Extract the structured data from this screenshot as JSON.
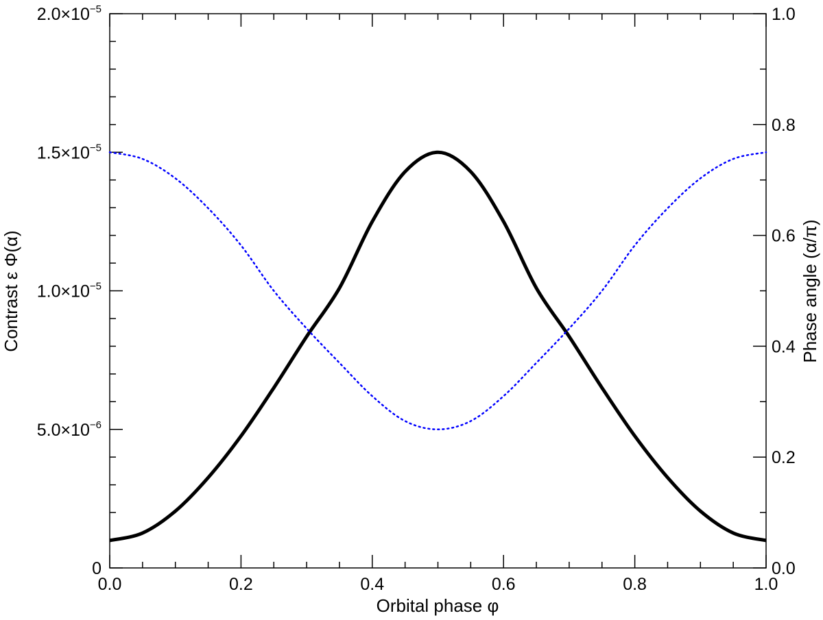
{
  "chart_data": {
    "type": "line",
    "xlabel": "Orbital phase φ",
    "ylabel": "Contrast ε Φ(α)",
    "y2label": "Phase angle (α/π)",
    "xlim": [
      0.0,
      1.0
    ],
    "ylim": [
      0,
      2e-05
    ],
    "y2lim": [
      0.0,
      1.0
    ],
    "grid": false,
    "legend": "none",
    "x_ticks": [
      "0.0",
      "0.2",
      "0.4",
      "0.6",
      "0.8",
      "1.0"
    ],
    "y_ticks": [
      {
        "value": 0,
        "mant": "0",
        "exp": ""
      },
      {
        "value": 5e-06,
        "mant": "5.0×10",
        "exp": "−6"
      },
      {
        "value": 1e-05,
        "mant": "1.0×10",
        "exp": "−5"
      },
      {
        "value": 1.5e-05,
        "mant": "1.5×10",
        "exp": "−5"
      },
      {
        "value": 2e-05,
        "mant": "2.0×10",
        "exp": "−5"
      }
    ],
    "y2_ticks": [
      "0.0",
      "0.2",
      "0.4",
      "0.6",
      "0.8",
      "1.0"
    ],
    "series": [
      {
        "axis": "left",
        "color": "#000000",
        "style": "solid",
        "x": [
          0.0,
          0.05,
          0.1,
          0.15,
          0.2,
          0.25,
          0.3,
          0.35,
          0.4,
          0.45,
          0.5,
          0.55,
          0.6,
          0.65,
          0.7,
          0.75,
          0.8,
          0.85,
          0.9,
          0.95,
          1.0
        ],
        "y": [
          9.9e-07,
          1.26e-06,
          2.05e-06,
          3.26e-06,
          4.76e-06,
          6.5e-06,
          8.35e-06,
          1.01e-05,
          1.25e-05,
          1.43e-05,
          1.5e-05,
          1.43e-05,
          1.25e-05,
          1.01e-05,
          8.35e-06,
          6.5e-06,
          4.76e-06,
          3.26e-06,
          2.05e-06,
          1.26e-06,
          9.9e-07
        ]
      },
      {
        "axis": "right",
        "color": "#0000ff",
        "style": "dotted",
        "x": [
          0.0,
          0.05,
          0.1,
          0.15,
          0.2,
          0.25,
          0.3,
          0.35,
          0.4,
          0.45,
          0.5,
          0.55,
          0.6,
          0.65,
          0.7,
          0.75,
          0.8,
          0.85,
          0.9,
          0.95,
          1.0
        ],
        "y": [
          0.75,
          0.738,
          0.703,
          0.649,
          0.582,
          0.5,
          0.432,
          0.37,
          0.31,
          0.265,
          0.25,
          0.265,
          0.31,
          0.37,
          0.432,
          0.5,
          0.582,
          0.649,
          0.703,
          0.738,
          0.75
        ]
      }
    ]
  }
}
